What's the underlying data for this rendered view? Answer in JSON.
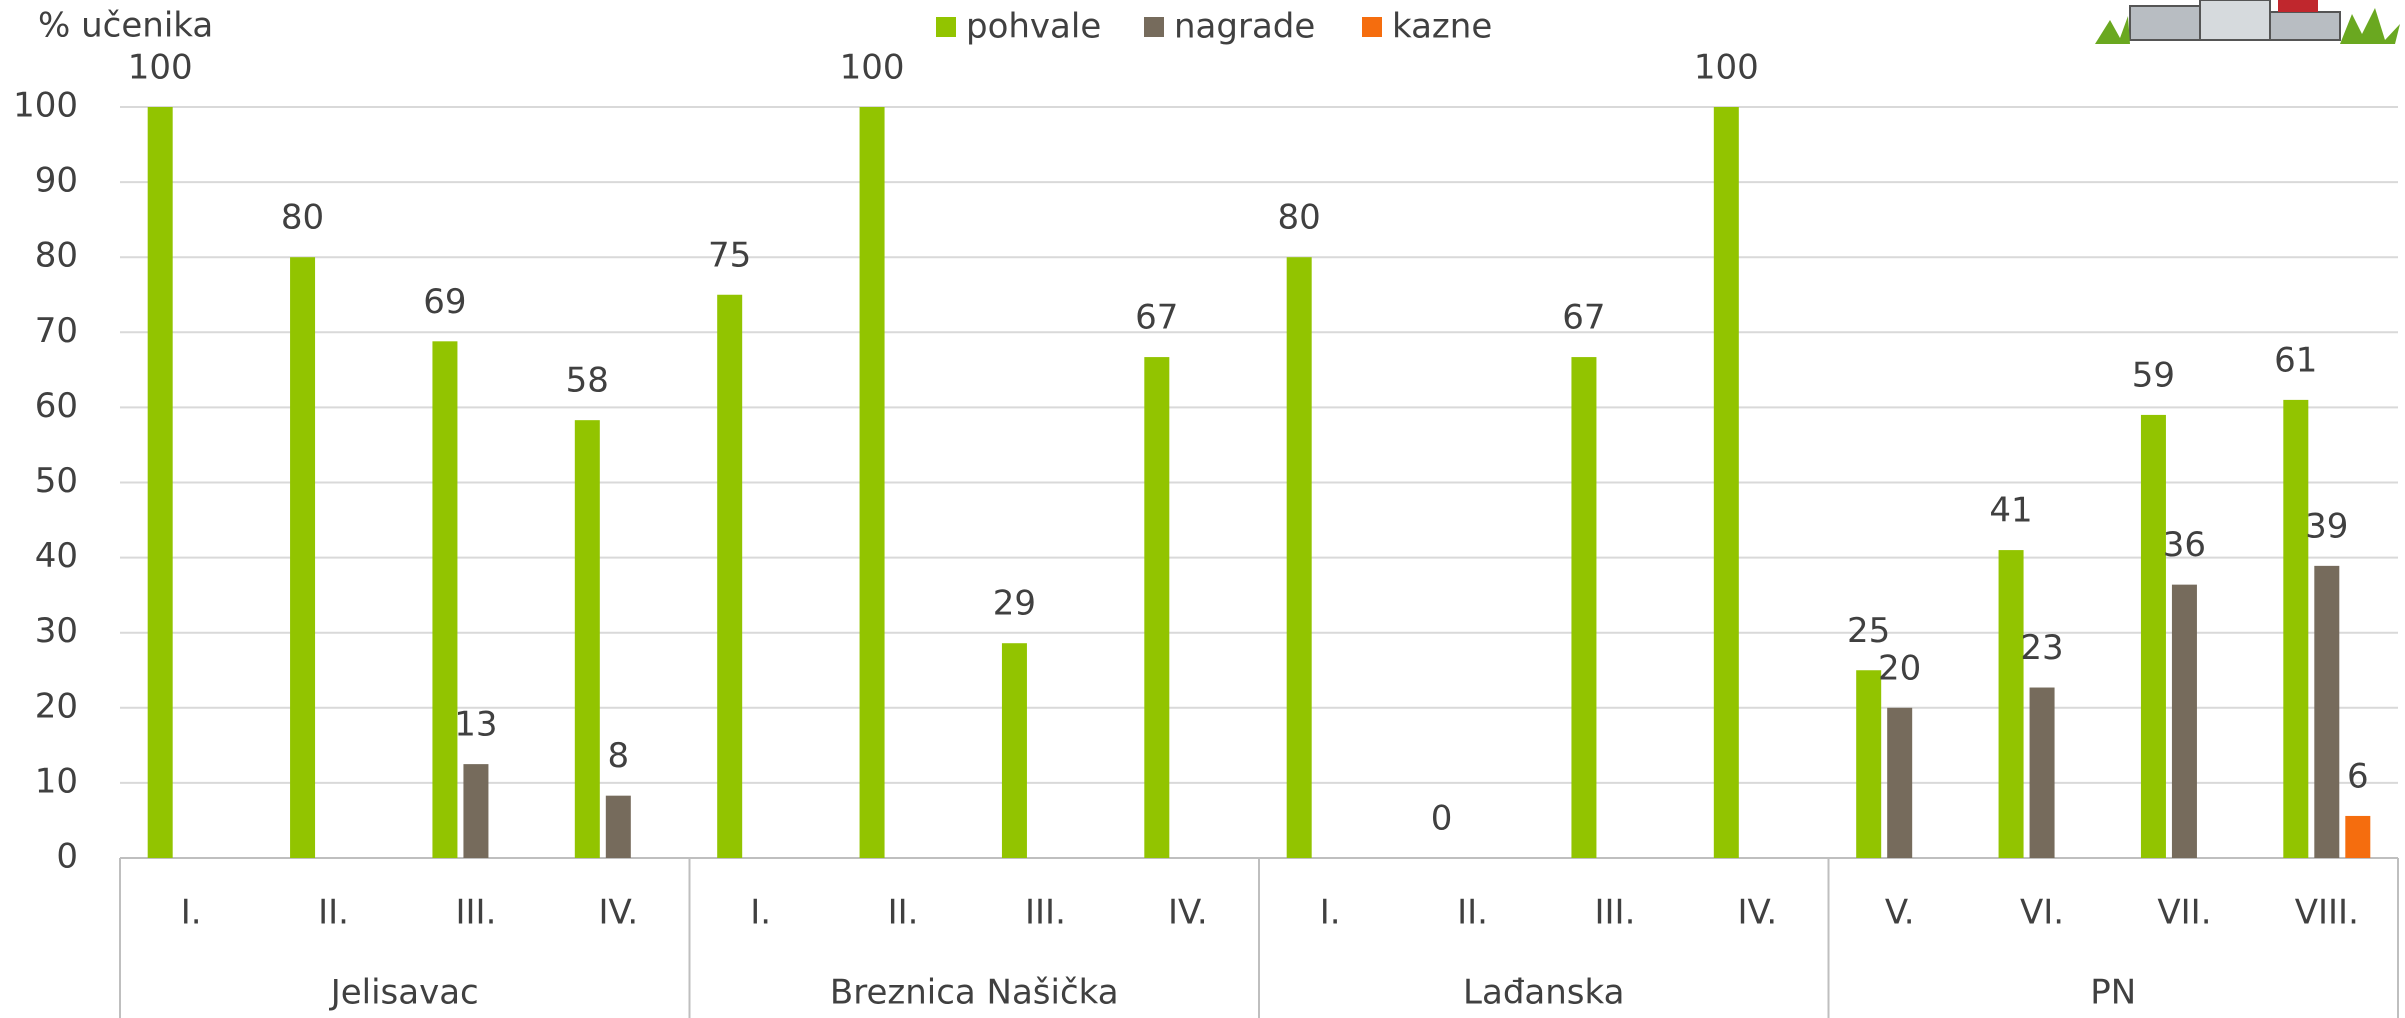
{
  "chart_data": {
    "type": "bar",
    "y_label": "% učenika",
    "groups": [
      {
        "name": "Jelisavac",
        "categories": [
          "I.",
          "II.",
          "III.",
          "IV."
        ]
      },
      {
        "name": "Breznica Našička",
        "categories": [
          "I.",
          "II.",
          "III.",
          "IV."
        ]
      },
      {
        "name": "Lađanska",
        "categories": [
          "I.",
          "II.",
          "III.",
          "IV."
        ]
      },
      {
        "name": "PN",
        "categories": [
          "V.",
          "VI.",
          "VII.",
          "VIII."
        ]
      }
    ],
    "series": [
      {
        "name": "pohvale",
        "color": "#92c400",
        "values": [
          100,
          80,
          68.8,
          58.3,
          75,
          100,
          28.6,
          66.7,
          80,
          0,
          66.7,
          100,
          25,
          41,
          59,
          61
        ],
        "value_labels": [
          "100",
          "80",
          "69",
          "58",
          "75",
          "100",
          "29",
          "67",
          "80",
          "0",
          "67",
          "100",
          "25",
          "41",
          "59",
          "61"
        ]
      },
      {
        "name": "nagrade",
        "color": "#766b5c",
        "values": [
          null,
          null,
          12.5,
          8.3,
          null,
          null,
          null,
          null,
          null,
          null,
          null,
          null,
          20,
          22.7,
          36.4,
          38.9
        ],
        "value_labels": [
          null,
          null,
          "13",
          "8",
          null,
          null,
          null,
          null,
          null,
          null,
          null,
          null,
          "20",
          "23",
          "36",
          "39"
        ]
      },
      {
        "name": "kazne",
        "color": "#f56d0e",
        "values": [
          null,
          null,
          null,
          null,
          null,
          null,
          null,
          null,
          null,
          null,
          null,
          null,
          null,
          null,
          null,
          5.6
        ],
        "value_labels": [
          null,
          null,
          null,
          null,
          null,
          null,
          null,
          null,
          null,
          null,
          null,
          null,
          null,
          null,
          null,
          "6"
        ]
      }
    ],
    "ylim": [
      0,
      100
    ],
    "yticks": [
      0,
      10,
      20,
      30,
      40,
      50,
      60,
      70,
      80,
      90,
      100
    ],
    "grid": true
  }
}
